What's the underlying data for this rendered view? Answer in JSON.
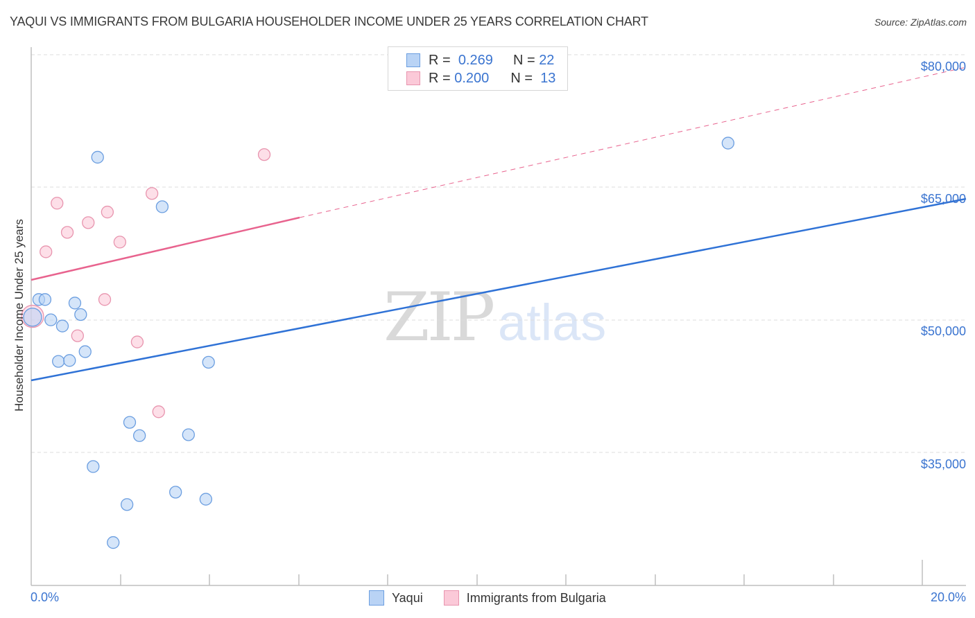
{
  "header": {
    "title": "YAQUI VS IMMIGRANTS FROM BULGARIA HOUSEHOLDER INCOME UNDER 25 YEARS CORRELATION CHART",
    "source": "Source: ZipAtlas.com"
  },
  "legend_top": {
    "rows": [
      {
        "r_label": "R =",
        "r_value": "0.269",
        "n_label": "N =",
        "n_value": "22"
      },
      {
        "r_label": "R =",
        "r_value": "0.200",
        "n_label": "N =",
        "n_value": "13"
      }
    ]
  },
  "legend_bottom": {
    "items": [
      {
        "label": "Yaqui"
      },
      {
        "label": "Immigrants from Bulgaria"
      }
    ]
  },
  "axes": {
    "ylabel": "Householder Income Under 25 years",
    "yticks": [
      "$80,000",
      "$65,000",
      "$50,000",
      "$35,000"
    ],
    "xticks": [
      "0.0%",
      "20.0%"
    ]
  },
  "watermark": {
    "zip": "ZIP",
    "atlas": "atlas"
  },
  "colors": {
    "blue_fill": "#b9d3f5",
    "blue_stroke": "#6b9ee0",
    "blue_line": "#2f72d6",
    "pink_fill": "#fbc9d8",
    "pink_stroke": "#e894ae",
    "pink_line": "#e8638e",
    "tick_text": "#3a74d0"
  },
  "chart_data": {
    "type": "scatter",
    "title": "YAQUI VS IMMIGRANTS FROM BULGARIA HOUSEHOLDER INCOME UNDER 25 YEARS CORRELATION CHART",
    "xlabel": "",
    "ylabel": "Householder Income Under 25 years",
    "xlim": [
      0,
      20
    ],
    "ylim": [
      20000,
      81000
    ],
    "x_unit": "%",
    "yticks": [
      35000,
      50000,
      65000,
      80000
    ],
    "grid": true,
    "legend_position": "bottom",
    "series": [
      {
        "name": "Yaqui",
        "color": "#6b9ee0",
        "R": 0.269,
        "N": 22,
        "points": [
          [
            1.49,
            68400
          ],
          [
            2.94,
            62800
          ],
          [
            15.64,
            70000
          ],
          [
            0.17,
            52300
          ],
          [
            0.31,
            52300
          ],
          [
            0.98,
            51900
          ],
          [
            1.11,
            50600
          ],
          [
            0.44,
            50000
          ],
          [
            0.7,
            49300
          ],
          [
            0.03,
            50300
          ],
          [
            0.61,
            45300
          ],
          [
            0.86,
            45400
          ],
          [
            1.21,
            46400
          ],
          [
            3.98,
            45200
          ],
          [
            2.21,
            38400
          ],
          [
            2.43,
            36900
          ],
          [
            3.53,
            37000
          ],
          [
            1.39,
            33400
          ],
          [
            3.24,
            30500
          ],
          [
            3.92,
            29700
          ],
          [
            2.15,
            29100
          ],
          [
            1.84,
            24800
          ]
        ],
        "trend": {
          "x0": 0,
          "y0": 43200,
          "x1": 20,
          "y1": 63600,
          "style": "solid"
        }
      },
      {
        "name": "Immigrants from Bulgaria",
        "color": "#e894ae",
        "R": 0.2,
        "N": 13,
        "points": [
          [
            5.23,
            68700
          ],
          [
            2.71,
            64300
          ],
          [
            0.58,
            63200
          ],
          [
            1.71,
            62200
          ],
          [
            1.28,
            61000
          ],
          [
            0.81,
            59900
          ],
          [
            1.99,
            58800
          ],
          [
            0.33,
            57700
          ],
          [
            1.65,
            52300
          ],
          [
            1.04,
            48200
          ],
          [
            2.38,
            47500
          ],
          [
            2.86,
            39600
          ],
          [
            0.03,
            50400
          ]
        ],
        "trend": {
          "x0": 0,
          "y0": 54500,
          "x1": 6.0,
          "y1": 61600,
          "style": "solid",
          "extended_to": [
            21.0,
            78600
          ],
          "extended_style": "dashed"
        }
      }
    ]
  }
}
